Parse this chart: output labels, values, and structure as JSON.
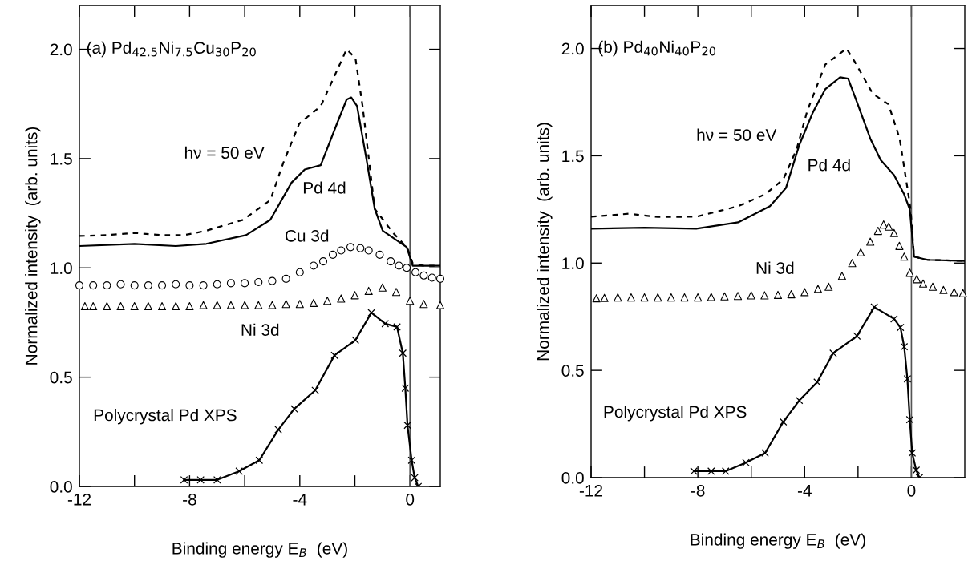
{
  "chart_data": [
    {
      "type": "line",
      "title": "(a) Pd$_{42.5}$Ni$_{7.5}$Cu$_{30}$P$_{20}$",
      "xlabel": "Binding energy E$_{B}$  (eV)",
      "ylabel": "Normalized intensity  (arb. units)",
      "xlim": [
        -12,
        1.1
      ],
      "ylim": [
        0,
        2.2
      ],
      "xticks": [
        -12,
        {
          "value": -10,
          "label": null
        },
        -8,
        {
          "value": -6,
          "label": null
        },
        -4,
        {
          "value": -2,
          "label": null
        },
        0
      ],
      "yticks": [
        {
          "value": 0,
          "label": "0.0"
        },
        {
          "value": 0.5,
          "label": "0.5"
        },
        {
          "value": 1,
          "label": "1.0"
        },
        {
          "value": 1.5,
          "label": "1.5"
        },
        {
          "value": 2,
          "label": "2.0"
        }
      ],
      "grid": false,
      "legend": false,
      "ref_lines": [
        {
          "axis": "x",
          "value": 0,
          "color": "#555555"
        }
      ],
      "series": [
        {
          "name": "hν = 50 eV",
          "color": "#000000",
          "line_style": "dashed",
          "marker": "none",
          "x": [
            -12,
            -11,
            -10,
            -9,
            -8.19,
            -7.4,
            -6.06,
            -5.07,
            -4.6,
            -4.02,
            -3.24,
            -2.3,
            -1.98,
            -1.72,
            -1.28,
            -0.61,
            -0.09,
            0.1,
            0.5,
            1.1
          ],
          "values": [
            1.146,
            1.15,
            1.16,
            1.15,
            1.15,
            1.17,
            1.22,
            1.31,
            1.48,
            1.66,
            1.74,
            2.0,
            1.96,
            1.74,
            1.27,
            1.16,
            1.09,
            1.02,
            1.01,
            1.01
          ]
        },
        {
          "name": "Pd 4d",
          "color": "#000000",
          "line_style": "solid",
          "marker": "none",
          "x": [
            -12,
            -10,
            -8.5,
            -7.4,
            -5.95,
            -5.07,
            -4.3,
            -3.82,
            -3.24,
            -2.65,
            -2.3,
            -2.13,
            -1.92,
            -1.57,
            -1.28,
            -0.99,
            -0.12,
            0.1,
            0.5,
            1.1
          ],
          "values": [
            1.1,
            1.11,
            1.1,
            1.11,
            1.15,
            1.22,
            1.39,
            1.45,
            1.47,
            1.66,
            1.77,
            1.78,
            1.74,
            1.49,
            1.27,
            1.17,
            1.095,
            1.01,
            1.01,
            1.01
          ]
        },
        {
          "name": "Cu 3d",
          "type": "scatter",
          "color": "#000000",
          "marker": "circle",
          "x": [
            -12,
            -11.5,
            -11,
            -10.5,
            -10,
            -9.5,
            -9,
            -8.5,
            -8,
            -7.5,
            -7,
            -6.5,
            -6,
            -5.5,
            -5,
            -4.5,
            -4,
            -3.5,
            -3.15,
            -2.8,
            -2.5,
            -2.16,
            -1.8,
            -1.5,
            -1.1,
            -0.7,
            -0.4,
            -0.12,
            0.2,
            0.5,
            0.8,
            1.1
          ],
          "values": [
            0.92,
            0.92,
            0.92,
            0.925,
            0.92,
            0.92,
            0.92,
            0.925,
            0.92,
            0.92,
            0.925,
            0.93,
            0.93,
            0.935,
            0.94,
            0.95,
            0.98,
            1.01,
            1.03,
            1.06,
            1.08,
            1.095,
            1.09,
            1.08,
            1.06,
            1.03,
            1.01,
            1.0,
            0.98,
            0.965,
            0.955,
            0.95
          ]
        },
        {
          "name": "Ni 3d",
          "type": "scatter",
          "color": "#000000",
          "marker": "triangle",
          "x": [
            -11.8,
            -11.5,
            -11,
            -10.5,
            -10,
            -9.5,
            -9,
            -8.5,
            -8,
            -7.5,
            -7,
            -6.5,
            -6,
            -5.5,
            -5,
            -4.5,
            -4,
            -3.5,
            -3,
            -2.5,
            -2,
            -1.5,
            -1,
            -0.5,
            0,
            0.5,
            1.1
          ],
          "values": [
            0.825,
            0.825,
            0.825,
            0.825,
            0.825,
            0.825,
            0.825,
            0.825,
            0.825,
            0.83,
            0.83,
            0.83,
            0.83,
            0.83,
            0.83,
            0.835,
            0.835,
            0.84,
            0.85,
            0.86,
            0.875,
            0.895,
            0.91,
            0.89,
            0.85,
            0.835,
            0.83
          ]
        },
        {
          "name": "Polycrystal Pd XPS",
          "color": "#000000",
          "line_style": "solid",
          "marker": "cross",
          "x": [
            -8.2,
            -7.6,
            -7.0,
            -6.2,
            -5.47,
            -4.78,
            -4.2,
            -3.44,
            -2.74,
            -1.98,
            -1.4,
            -0.9,
            -0.47,
            -0.26,
            -0.17,
            -0.09,
            0.06,
            0.17,
            0.3
          ],
          "values": [
            0.03,
            0.03,
            0.03,
            0.07,
            0.12,
            0.26,
            0.355,
            0.44,
            0.6,
            0.67,
            0.795,
            0.745,
            0.73,
            0.61,
            0.45,
            0.28,
            0.12,
            0.04,
            0.0
          ]
        }
      ]
    },
    {
      "type": "line",
      "title": "(b) Pd$_{40}$Ni$_{40}$P$_{20}$",
      "xlabel": "Binding energy E$_{B}$  (eV)",
      "ylabel": "Normalized intensity  (arb. units)",
      "xlim": [
        -12,
        2
      ],
      "ylim": [
        0,
        2.2
      ],
      "xticks": [
        -12,
        {
          "value": -10,
          "label": null
        },
        -8,
        {
          "value": -6,
          "label": null
        },
        -4,
        {
          "value": -2,
          "label": null
        },
        0
      ],
      "yticks": [
        {
          "value": 0,
          "label": "0.0"
        },
        {
          "value": 0.5,
          "label": "0.5"
        },
        {
          "value": 1,
          "label": "1.0"
        },
        {
          "value": 1.5,
          "label": "1.5"
        },
        {
          "value": 2,
          "label": "2.0"
        }
      ],
      "grid": false,
      "legend": false,
      "ref_lines": [
        {
          "axis": "x",
          "value": 0,
          "color": "#555555"
        }
      ],
      "series": [
        {
          "name": "hν = 50 eV",
          "color": "#000000",
          "line_style": "dashed",
          "marker": "none",
          "x": [
            -12,
            -10.6,
            -9.5,
            -8.06,
            -6.49,
            -5.49,
            -4.8,
            -4.3,
            -3.9,
            -3.23,
            -2.43,
            -2.13,
            -1.45,
            -0.86,
            -0.44,
            -0.15,
            -0.03,
            0.1,
            0.6,
            2
          ],
          "values": [
            1.216,
            1.23,
            1.215,
            1.216,
            1.265,
            1.32,
            1.39,
            1.53,
            1.71,
            1.925,
            2.0,
            1.94,
            1.79,
            1.74,
            1.58,
            1.35,
            1.25,
            1.03,
            1.015,
            1.01
          ]
        },
        {
          "name": "Pd 4d",
          "color": "#000000",
          "line_style": "solid",
          "marker": "none",
          "x": [
            -12,
            -10,
            -8.06,
            -6.49,
            -5.3,
            -4.7,
            -4.2,
            -3.7,
            -3.23,
            -2.67,
            -2.37,
            -2.04,
            -1.54,
            -1.15,
            -0.65,
            -0.27,
            -0.06,
            0.1,
            0.6,
            2
          ],
          "values": [
            1.16,
            1.165,
            1.16,
            1.19,
            1.265,
            1.35,
            1.55,
            1.7,
            1.81,
            1.866,
            1.86,
            1.75,
            1.58,
            1.48,
            1.41,
            1.32,
            1.25,
            1.03,
            1.015,
            1.01
          ]
        },
        {
          "name": "Ni 3d",
          "type": "scatter",
          "color": "#000000",
          "marker": "triangle",
          "x": [
            -11.8,
            -11.5,
            -11,
            -10.5,
            -10,
            -9.5,
            -9,
            -8.5,
            -8,
            -7.5,
            -7,
            -6.5,
            -6,
            -5.5,
            -5,
            -4.5,
            -4,
            -3.5,
            -3.1,
            -2.6,
            -2.22,
            -1.9,
            -1.54,
            -1.25,
            -1.04,
            -0.85,
            -0.65,
            -0.45,
            -0.27,
            -0.06,
            0.2,
            0.44,
            0.8,
            1.2,
            1.6,
            1.93
          ],
          "values": [
            0.836,
            0.838,
            0.84,
            0.84,
            0.84,
            0.84,
            0.84,
            0.84,
            0.84,
            0.842,
            0.845,
            0.847,
            0.85,
            0.85,
            0.852,
            0.855,
            0.865,
            0.88,
            0.89,
            0.94,
            1.0,
            1.05,
            1.1,
            1.15,
            1.18,
            1.17,
            1.14,
            1.08,
            1.03,
            0.955,
            0.925,
            0.905,
            0.89,
            0.875,
            0.865,
            0.86
          ]
        },
        {
          "name": "Polycrystal Pd XPS",
          "color": "#000000",
          "line_style": "solid",
          "marker": "cross",
          "x": [
            -8.15,
            -7.5,
            -6.96,
            -6.2,
            -5.48,
            -4.8,
            -4.2,
            -3.53,
            -2.93,
            -2.04,
            -1.39,
            -0.65,
            -0.41,
            -0.27,
            -0.15,
            -0.06,
            0.03,
            0.18,
            0.3
          ],
          "values": [
            0.03,
            0.03,
            0.03,
            0.07,
            0.115,
            0.26,
            0.36,
            0.445,
            0.58,
            0.66,
            0.795,
            0.74,
            0.7,
            0.61,
            0.46,
            0.27,
            0.115,
            0.035,
            0.0
          ]
        }
      ]
    }
  ]
}
